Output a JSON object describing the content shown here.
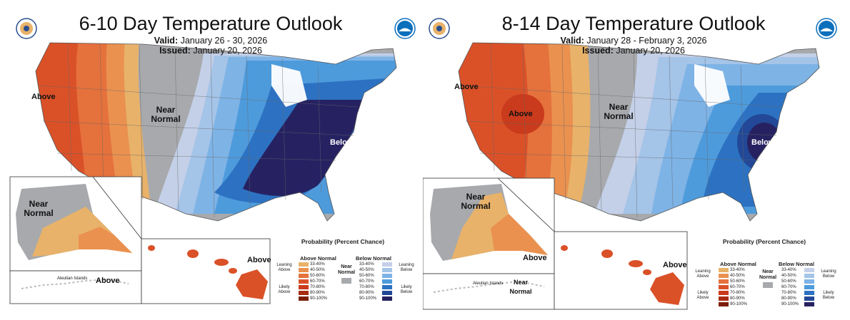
{
  "colors": {
    "above": [
      "#e8b26a",
      "#ea9150",
      "#e5713c",
      "#da5128",
      "#c93b1c",
      "#a82d12",
      "#7a1f0a"
    ],
    "below": [
      "#c4d0e8",
      "#a4c4e8",
      "#7eb3e6",
      "#4e9bdc",
      "#2d72c2",
      "#224897",
      "#262262"
    ],
    "near": "#a7a9ac"
  },
  "panels": [
    {
      "title": "6-10 Day Temperature Outlook",
      "valid_label": "Valid:",
      "valid_value": "January 26 - 30, 2026",
      "issued_label": "Issued:",
      "issued_value": "January 20, 2026",
      "labels": {
        "above_west": "Above",
        "near_center": "Near Normal",
        "below_east": "Below",
        "alaska": "Near Normal",
        "aleutian_title": "Aleutian Islands",
        "aleutian_label": "Above",
        "hawaii": "Above"
      }
    },
    {
      "title": "8-14 Day Temperature Outlook",
      "valid_label": "Valid:",
      "valid_value": "January 28 - February 3, 2026",
      "issued_label": "Issued:",
      "issued_value": "January 20, 2026",
      "labels": {
        "above_west": "Above",
        "above_center": "Above",
        "near_center": "Near Normal",
        "below_east": "Below",
        "alaska": "Near Normal",
        "alaska_inset": "Above",
        "aleutian_title": "Aleutian Islands",
        "aleutian_label": "Near Normal",
        "hawaii": "Above"
      }
    }
  ],
  "legend": {
    "title": "Probability (Percent Chance)",
    "above_head": "Above Normal",
    "below_head": "Below Normal",
    "near_label": "Near Normal",
    "leaning_above": "Leaning Above",
    "likely_above": "Likely Above",
    "leaning_below": "Leaning Below",
    "likely_below": "Likely Below",
    "ranges": [
      "33-40%",
      "40-50%",
      "50-60%",
      "60-70%",
      "70-80%",
      "80-90%",
      "90-100%"
    ]
  }
}
